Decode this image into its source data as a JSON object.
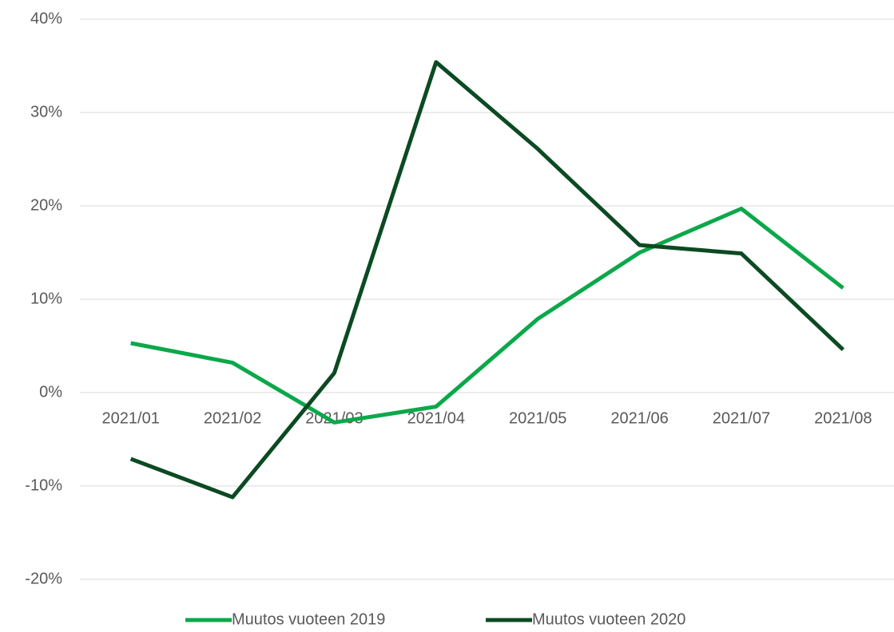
{
  "chart_data": {
    "type": "line",
    "categories": [
      "2021/01",
      "2021/02",
      "2021/03",
      "2021/04",
      "2021/05",
      "2021/06",
      "2021/07",
      "2021/08"
    ],
    "series": [
      {
        "name": "Muutos vuoteen 2019",
        "color": "#0ba84a",
        "values": [
          5.3,
          3.2,
          -3.2,
          -1.5,
          7.9,
          15.0,
          19.7,
          11.2
        ]
      },
      {
        "name": "Muutos vuoteen 2020",
        "color": "#0b4a22",
        "values": [
          -7.1,
          -11.2,
          2.1,
          35.4,
          26.1,
          15.8,
          14.9,
          4.6
        ]
      }
    ],
    "ylim": [
      -20,
      40
    ],
    "yticks": [
      {
        "value": -20,
        "label": "-20%"
      },
      {
        "value": -10,
        "label": "-10%"
      },
      {
        "value": 0,
        "label": "0%"
      },
      {
        "value": 10,
        "label": "10%"
      },
      {
        "value": 20,
        "label": "20%"
      },
      {
        "value": 30,
        "label": "30%"
      },
      {
        "value": 40,
        "label": "40%"
      }
    ],
    "grid": true,
    "legend": "bottom"
  }
}
